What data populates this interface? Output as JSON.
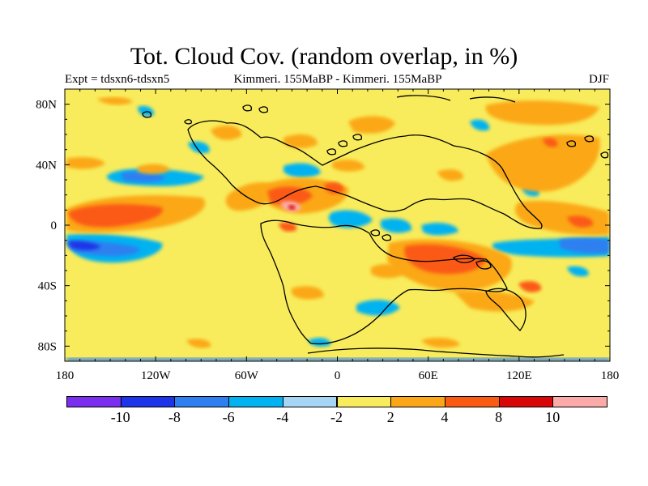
{
  "title": "Tot. Cloud Cov. (random overlap, in %)",
  "experiment": "Expt = tdsxn6-tdsxn5",
  "comparison": "Kimmeri. 155MaBP - Kimmeri. 155MaBP",
  "season": "DJF",
  "map": {
    "projection": "cylindrical equidistant",
    "x_ticks": [
      "180",
      "120W",
      "60W",
      "0",
      "60E",
      "120E",
      "180"
    ],
    "y_ticks": [
      "80N",
      "40N",
      "0",
      "40S",
      "80S"
    ],
    "lon_range": [
      -180,
      180
    ],
    "lat_range": [
      -90,
      90
    ]
  },
  "colorbar": {
    "labels": [
      "-10",
      "-8",
      "-6",
      "-4",
      "-2",
      "2",
      "4",
      "8",
      "10"
    ],
    "colors": [
      "#7b2df0",
      "#1c35e8",
      "#2e7ff0",
      "#00b2f0",
      "#a6d6f5",
      "#f8ec5c",
      "#fba718",
      "#fb5a12",
      "#d80606",
      "#fbaaaa"
    ]
  }
}
